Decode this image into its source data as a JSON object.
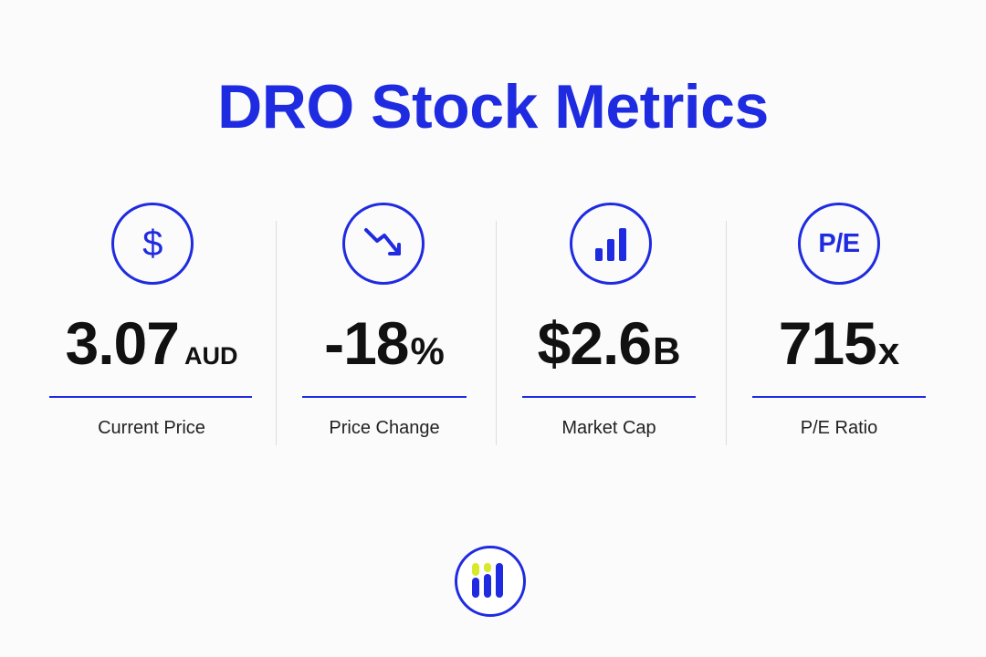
{
  "title": "DRO Stock Metrics",
  "colors": {
    "accent": "#1f2be0",
    "logo_yellow": "#d7ea2a",
    "text": "#111111",
    "divider": "#dddddd"
  },
  "metrics": [
    {
      "icon": "dollar-icon",
      "icon_text": "$",
      "value": "3.07",
      "unit": "AUD",
      "label": "Current Price"
    },
    {
      "icon": "trend-down-icon",
      "value": "-18",
      "unit": "%",
      "label": "Price Change"
    },
    {
      "icon": "bar-chart-icon",
      "value": "$2.6",
      "unit": "B",
      "label": "Market Cap"
    },
    {
      "icon": "pe-ratio-icon",
      "icon_text": "P/E",
      "value": "715",
      "unit": "x",
      "label": "P/E Ratio"
    }
  ],
  "footer": {
    "logo_icon": "bar-logo-icon"
  }
}
